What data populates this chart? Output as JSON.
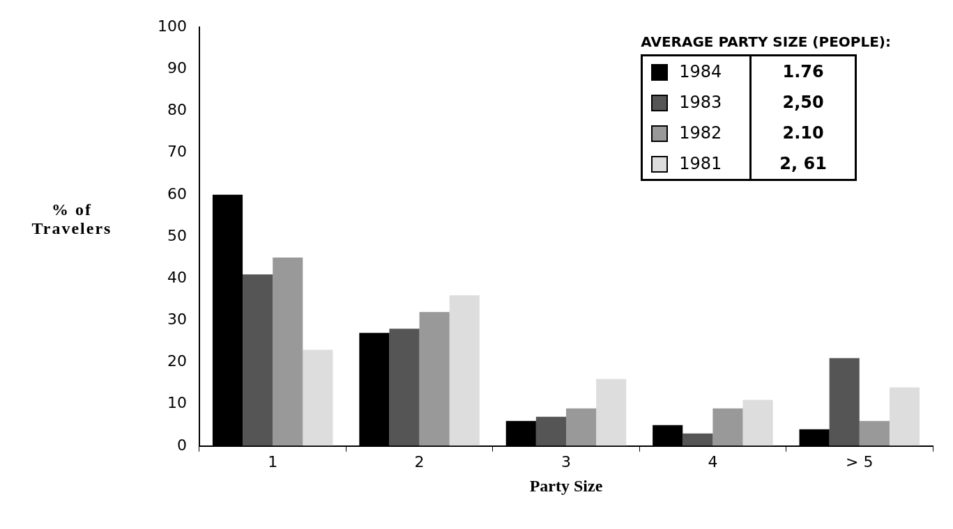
{
  "chart_data": {
    "type": "bar",
    "xlabel": "Party Size",
    "ylabel": "% of Travelers",
    "legend_title": "AVERAGE PARTY SIZE (PEOPLE):",
    "categories": [
      "1",
      "2",
      "3",
      "4",
      "> 5"
    ],
    "series": [
      {
        "name": "1984",
        "color": "#000000",
        "values": [
          60,
          27,
          6,
          5,
          4
        ]
      },
      {
        "name": "1983",
        "color": "#555555",
        "values": [
          41,
          28,
          7,
          3,
          21
        ]
      },
      {
        "name": "1982",
        "color": "#999999",
        "values": [
          45,
          32,
          9,
          9,
          6
        ]
      },
      {
        "name": "1981",
        "color": "#dddddd",
        "values": [
          23,
          36,
          16,
          11,
          14
        ]
      }
    ],
    "ylim": [
      0,
      100
    ],
    "yticks": [
      0,
      10,
      20,
      30,
      40,
      50,
      60,
      70,
      80,
      90,
      100
    ],
    "grid": false,
    "legend": "top right",
    "annotations": [
      "1.76",
      "2,50",
      "2.10",
      "2, 61"
    ]
  }
}
